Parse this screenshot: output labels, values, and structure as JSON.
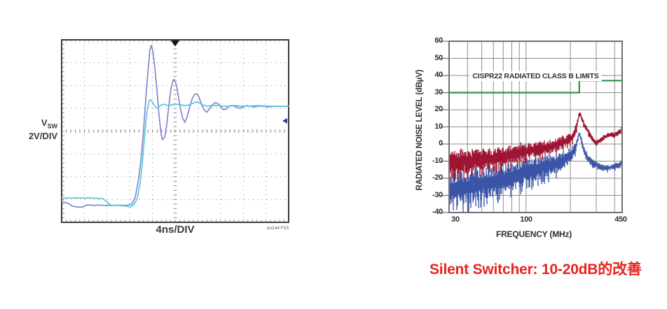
{
  "caption": {
    "text": "Silent Switcher: 10-20dB的改善",
    "color": "#e8231c"
  },
  "chart_data": [
    {
      "id": "vsw-oscilloscope",
      "type": "line",
      "title": "",
      "xlabel": "4ns/DIV",
      "ylabel": "VSW 2V/DIV",
      "ylabel_sym": "V",
      "ylabel_sub": "SW",
      "ylabel_scale": "2V/DIV",
      "note": "an144 F03",
      "x_divisions": 10,
      "y_divisions": 8,
      "time_per_div": "4ns",
      "volts_per_div": "2V",
      "colors": {
        "frame": "#3a3a3a",
        "grid": "#9ba0ab",
        "trigger_marker": "#151515",
        "level_marker": "#2b3f9f"
      },
      "markers": {
        "trigger_x_div": 5,
        "level_y_div": 4.45
      },
      "series": [
        {
          "name": "conventional-regulator-vsw-ringing",
          "color": "#8287cb",
          "points_div": [
            [
              0,
              0.92
            ],
            [
              0.3,
              0.82
            ],
            [
              0.46,
              0.71
            ],
            [
              0.68,
              0.67
            ],
            [
              0.93,
              0.67
            ],
            [
              1.14,
              0.77
            ],
            [
              1.4,
              0.74
            ],
            [
              1.6,
              0.76
            ],
            [
              1.9,
              0.74
            ],
            [
              2.2,
              0.74
            ],
            [
              2.5,
              0.75
            ],
            [
              2.84,
              0.74
            ],
            [
              3.09,
              0.8
            ],
            [
              3.24,
              1.1
            ],
            [
              3.36,
              1.72
            ],
            [
              3.49,
              2.7
            ],
            [
              3.61,
              4.08
            ],
            [
              3.73,
              5.77
            ],
            [
              3.83,
              6.93
            ],
            [
              3.89,
              7.55
            ],
            [
              3.95,
              7.76
            ],
            [
              4.01,
              7.55
            ],
            [
              4.1,
              6.84
            ],
            [
              4.2,
              5.77
            ],
            [
              4.29,
              4.69
            ],
            [
              4.38,
              3.87
            ],
            [
              4.44,
              3.62
            ],
            [
              4.54,
              3.74
            ],
            [
              4.63,
              4.29
            ],
            [
              4.72,
              5.09
            ],
            [
              4.81,
              5.83
            ],
            [
              4.91,
              6.23
            ],
            [
              4.97,
              6.26
            ],
            [
              5.06,
              6.01
            ],
            [
              5.15,
              5.46
            ],
            [
              5.25,
              4.91
            ],
            [
              5.34,
              4.54
            ],
            [
              5.43,
              4.39
            ],
            [
              5.52,
              4.6
            ],
            [
              5.65,
              5.09
            ],
            [
              5.77,
              5.46
            ],
            [
              5.86,
              5.61
            ],
            [
              5.96,
              5.64
            ],
            [
              6.05,
              5.49
            ],
            [
              6.17,
              5.15
            ],
            [
              6.3,
              4.91
            ],
            [
              6.39,
              4.82
            ],
            [
              6.51,
              4.97
            ],
            [
              6.64,
              5.15
            ],
            [
              6.76,
              5.25
            ],
            [
              6.88,
              5.21
            ],
            [
              7.01,
              5.06
            ],
            [
              7.13,
              4.94
            ],
            [
              7.25,
              4.97
            ],
            [
              7.38,
              5.09
            ],
            [
              7.5,
              5.12
            ],
            [
              7.62,
              5.09
            ],
            [
              7.75,
              5.03
            ],
            [
              7.87,
              5.0
            ],
            [
              7.99,
              5.06
            ],
            [
              8.15,
              5.12
            ],
            [
              8.3,
              5.09
            ],
            [
              8.46,
              5.06
            ],
            [
              8.64,
              5.09
            ],
            [
              8.86,
              5.09
            ],
            [
              9.1,
              5.06
            ],
            [
              9.38,
              5.09
            ],
            [
              9.69,
              5.09
            ],
            [
              10,
              5.09
            ]
          ]
        },
        {
          "name": "silent-switcher-vsw-clean",
          "color": "#55c8dd",
          "points_div": [
            [
              0,
              1.07
            ],
            [
              0.68,
              1.07
            ],
            [
              1.3,
              1.07
            ],
            [
              1.79,
              1.04
            ],
            [
              1.94,
              0.95
            ],
            [
              2.1,
              0.8
            ],
            [
              2.22,
              0.74
            ],
            [
              2.53,
              0.74
            ],
            [
              2.84,
              0.71
            ],
            [
              3.02,
              0.67
            ],
            [
              3.18,
              0.77
            ],
            [
              3.33,
              1.04
            ],
            [
              3.46,
              1.72
            ],
            [
              3.55,
              2.55
            ],
            [
              3.64,
              3.62
            ],
            [
              3.73,
              4.6
            ],
            [
              3.8,
              5.09
            ],
            [
              3.86,
              5.34
            ],
            [
              3.92,
              5.37
            ],
            [
              4.01,
              5.25
            ],
            [
              4.1,
              5.09
            ],
            [
              4.2,
              5.0
            ],
            [
              4.32,
              5.09
            ],
            [
              4.44,
              5.18
            ],
            [
              4.57,
              5.15
            ],
            [
              4.72,
              5.12
            ],
            [
              4.88,
              5.15
            ],
            [
              5.06,
              5.18
            ],
            [
              5.25,
              5.15
            ],
            [
              5.43,
              5.12
            ],
            [
              5.62,
              5.15
            ],
            [
              5.77,
              5.21
            ],
            [
              5.9,
              5.27
            ],
            [
              6.02,
              5.27
            ],
            [
              6.14,
              5.18
            ],
            [
              6.3,
              5.12
            ],
            [
              6.45,
              5.09
            ],
            [
              6.64,
              5.12
            ],
            [
              6.85,
              5.12
            ],
            [
              7.1,
              5.09
            ],
            [
              7.35,
              5.09
            ],
            [
              7.62,
              5.12
            ],
            [
              7.93,
              5.09
            ],
            [
              8.27,
              5.09
            ],
            [
              8.64,
              5.12
            ],
            [
              9.07,
              5.09
            ],
            [
              9.54,
              5.09
            ],
            [
              10,
              5.09
            ]
          ]
        }
      ]
    },
    {
      "id": "radiated-emi-spectrum",
      "type": "line",
      "title": "",
      "xlabel": "FREQUENCY (MHz)",
      "ylabel": "RADIATED NOISE LEVEL (dBµV)",
      "x_scale": "log",
      "xlim": [
        30,
        450
      ],
      "ylim": [
        -40,
        60
      ],
      "grid": true,
      "xticks": [
        30,
        100,
        450
      ],
      "xtick_labels": [
        "30",
        "100",
        "450"
      ],
      "x_gridlines": [
        40,
        50,
        60,
        70,
        80,
        90,
        100,
        200,
        300,
        400
      ],
      "ytick_labels": [
        "60",
        "50",
        "40",
        "30",
        "20",
        "10",
        "0",
        "-10",
        "-20",
        "-30",
        "-40"
      ],
      "yticks": [
        60,
        50,
        40,
        30,
        20,
        10,
        0,
        -10,
        -20,
        -30,
        -40
      ],
      "colors": {
        "frame": "#707070",
        "grid": "#8d8d8d"
      },
      "limit_line": {
        "label": "CISPR22 RADIATED CLASS B LIMITS",
        "color": "#31914a",
        "points": [
          [
            30,
            30
          ],
          [
            230,
            30
          ],
          [
            230,
            37
          ],
          [
            450,
            37
          ]
        ]
      },
      "series": [
        {
          "name": "silent-switcher-radiated-noise",
          "color": "#3a55a8",
          "seed": 13,
          "freq": [
            30,
            40,
            50,
            60,
            70,
            85,
            100,
            120,
            140,
            160,
            180,
            195,
            210,
            220,
            226,
            230,
            238,
            248,
            260,
            275,
            290,
            305,
            320,
            340,
            360,
            380,
            400,
            420,
            435,
            450
          ],
          "mid_db": [
            -27,
            -25,
            -23.5,
            -22,
            -20.5,
            -18.5,
            -16.5,
            -14.5,
            -13,
            -11.5,
            -9.5,
            -7.5,
            -4.5,
            -1,
            4,
            6.5,
            1.5,
            -3.5,
            -7.5,
            -10,
            -11.5,
            -12.5,
            -13.5,
            -14,
            -14,
            -13.5,
            -13,
            -12.5,
            -11.5,
            -10.5
          ],
          "half_amp_db": [
            10,
            10,
            9.5,
            9,
            8.5,
            8,
            7.5,
            7,
            6.5,
            6,
            5.5,
            5,
            4,
            3,
            2,
            1.5,
            2,
            2.5,
            2.5,
            2.5,
            2.2,
            2,
            2,
            1.8,
            1.8,
            1.8,
            1.8,
            1.8,
            1.8,
            1.8
          ]
        },
        {
          "name": "conventional-regulator-radiated-noise",
          "color": "#9e1433",
          "seed": 7,
          "freq": [
            30,
            40,
            50,
            60,
            70,
            85,
            100,
            120,
            140,
            160,
            180,
            200,
            212,
            222,
            228,
            233,
            240,
            250,
            262,
            275,
            290,
            300,
            312,
            325,
            340,
            360,
            380,
            400,
            418,
            432,
            442,
            450
          ],
          "mid_db": [
            -11,
            -10,
            -9,
            -8.5,
            -7.5,
            -6,
            -4.5,
            -3,
            -2,
            -0.5,
            1,
            3,
            6,
            11,
            16,
            17.5,
            14.5,
            11,
            8,
            4.5,
            1.5,
            0.5,
            1.5,
            2.5,
            4,
            5,
            5.5,
            5,
            6,
            7,
            7.5,
            10
          ],
          "half_amp_db": [
            7,
            7,
            6.5,
            6,
            6,
            5.5,
            5,
            4.5,
            4.5,
            4,
            3.5,
            3.2,
            3,
            2.5,
            2,
            1.8,
            1.8,
            1.8,
            1.8,
            1.6,
            1.6,
            1.6,
            1.6,
            1.6,
            1.6,
            1.6,
            1.6,
            1.6,
            1.6,
            1.6,
            1.6,
            2
          ]
        }
      ]
    }
  ]
}
